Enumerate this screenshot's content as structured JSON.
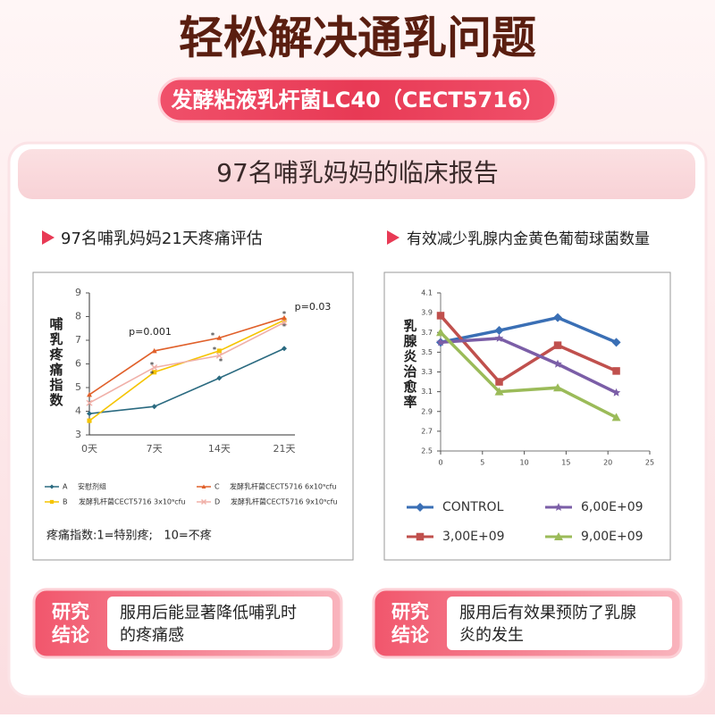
{
  "header": {
    "title": "轻松解决通乳问题",
    "badge": "发酵粘液乳杆菌LC40（CECT5716）"
  },
  "section_title": "97名哺乳妈妈的临床报告",
  "chart_data": [
    {
      "type": "line",
      "title": "97名哺乳妈妈21天疼痛评估",
      "ylabel": "哺乳疼痛指数",
      "categories": [
        "0天",
        "7天",
        "14天",
        "21天"
      ],
      "ylim": [
        3,
        9
      ],
      "yticks": [
        3,
        4,
        5,
        6,
        7,
        8,
        9
      ],
      "series": [
        {
          "key": "A",
          "name": "安慰剂组",
          "color": "#2a6a80",
          "marker": "diamond",
          "values": [
            3.9,
            4.2,
            5.4,
            6.65
          ]
        },
        {
          "key": "B",
          "name": "发酵乳杆菌CECT5716 3x10⁹cfu",
          "color": "#f5c400",
          "marker": "square",
          "values": [
            3.6,
            5.65,
            6.55,
            7.85
          ]
        },
        {
          "key": "C",
          "name": "发酵乳杆菌CECT5716 6x10⁹cfu",
          "color": "#e0602a",
          "marker": "triangle",
          "values": [
            4.7,
            6.55,
            7.1,
            7.95
          ]
        },
        {
          "key": "D",
          "name": "发酵乳杆菌CECT5716 9x10⁹cfu",
          "color": "#f0b0a8",
          "marker": "cross",
          "values": [
            4.35,
            5.85,
            6.35,
            7.75
          ]
        }
      ],
      "annotations": [
        "p=0.001",
        "p=0.03",
        "*",
        "*",
        "*",
        "*",
        "*",
        "*",
        "*"
      ],
      "note": "疼痛指数:1=特别疼;   10=不疼",
      "conclusion_label": [
        "研究",
        "结论"
      ],
      "conclusion": [
        "服用后能显著降低哺乳时",
        "的疼痛感"
      ]
    },
    {
      "type": "line",
      "title": "有效减少乳腺内金黄色葡萄球菌数量",
      "ylabel": "乳腺炎治愈率",
      "x": [
        0,
        7,
        14,
        21
      ],
      "xlim": [
        0,
        25
      ],
      "xticks": [
        0,
        5,
        10,
        15,
        20,
        25
      ],
      "ylim": [
        2.5,
        4.1
      ],
      "yticks": [
        2.5,
        2.7,
        2.9,
        3.1,
        3.3,
        3.5,
        3.7,
        3.9,
        4.1
      ],
      "series": [
        {
          "name": "CONTROL",
          "color": "#3a6fb5",
          "marker": "diamond",
          "values": [
            3.6,
            3.72,
            3.85,
            3.6
          ]
        },
        {
          "name": "3,00E+09",
          "color": "#c0504d",
          "marker": "square",
          "values": [
            3.87,
            3.2,
            3.57,
            3.31
          ]
        },
        {
          "name": "6,00E+09",
          "color": "#7b5ea7",
          "marker": "star",
          "values": [
            3.6,
            3.64,
            3.38,
            3.09
          ]
        },
        {
          "name": "9,00E+09",
          "color": "#9bbb59",
          "marker": "triangle",
          "values": [
            3.7,
            3.1,
            3.14,
            2.84
          ]
        }
      ],
      "conclusion_label": [
        "研究",
        "结论"
      ],
      "conclusion": [
        "服用后有效果预防了乳腺",
        "炎的发生"
      ]
    }
  ]
}
